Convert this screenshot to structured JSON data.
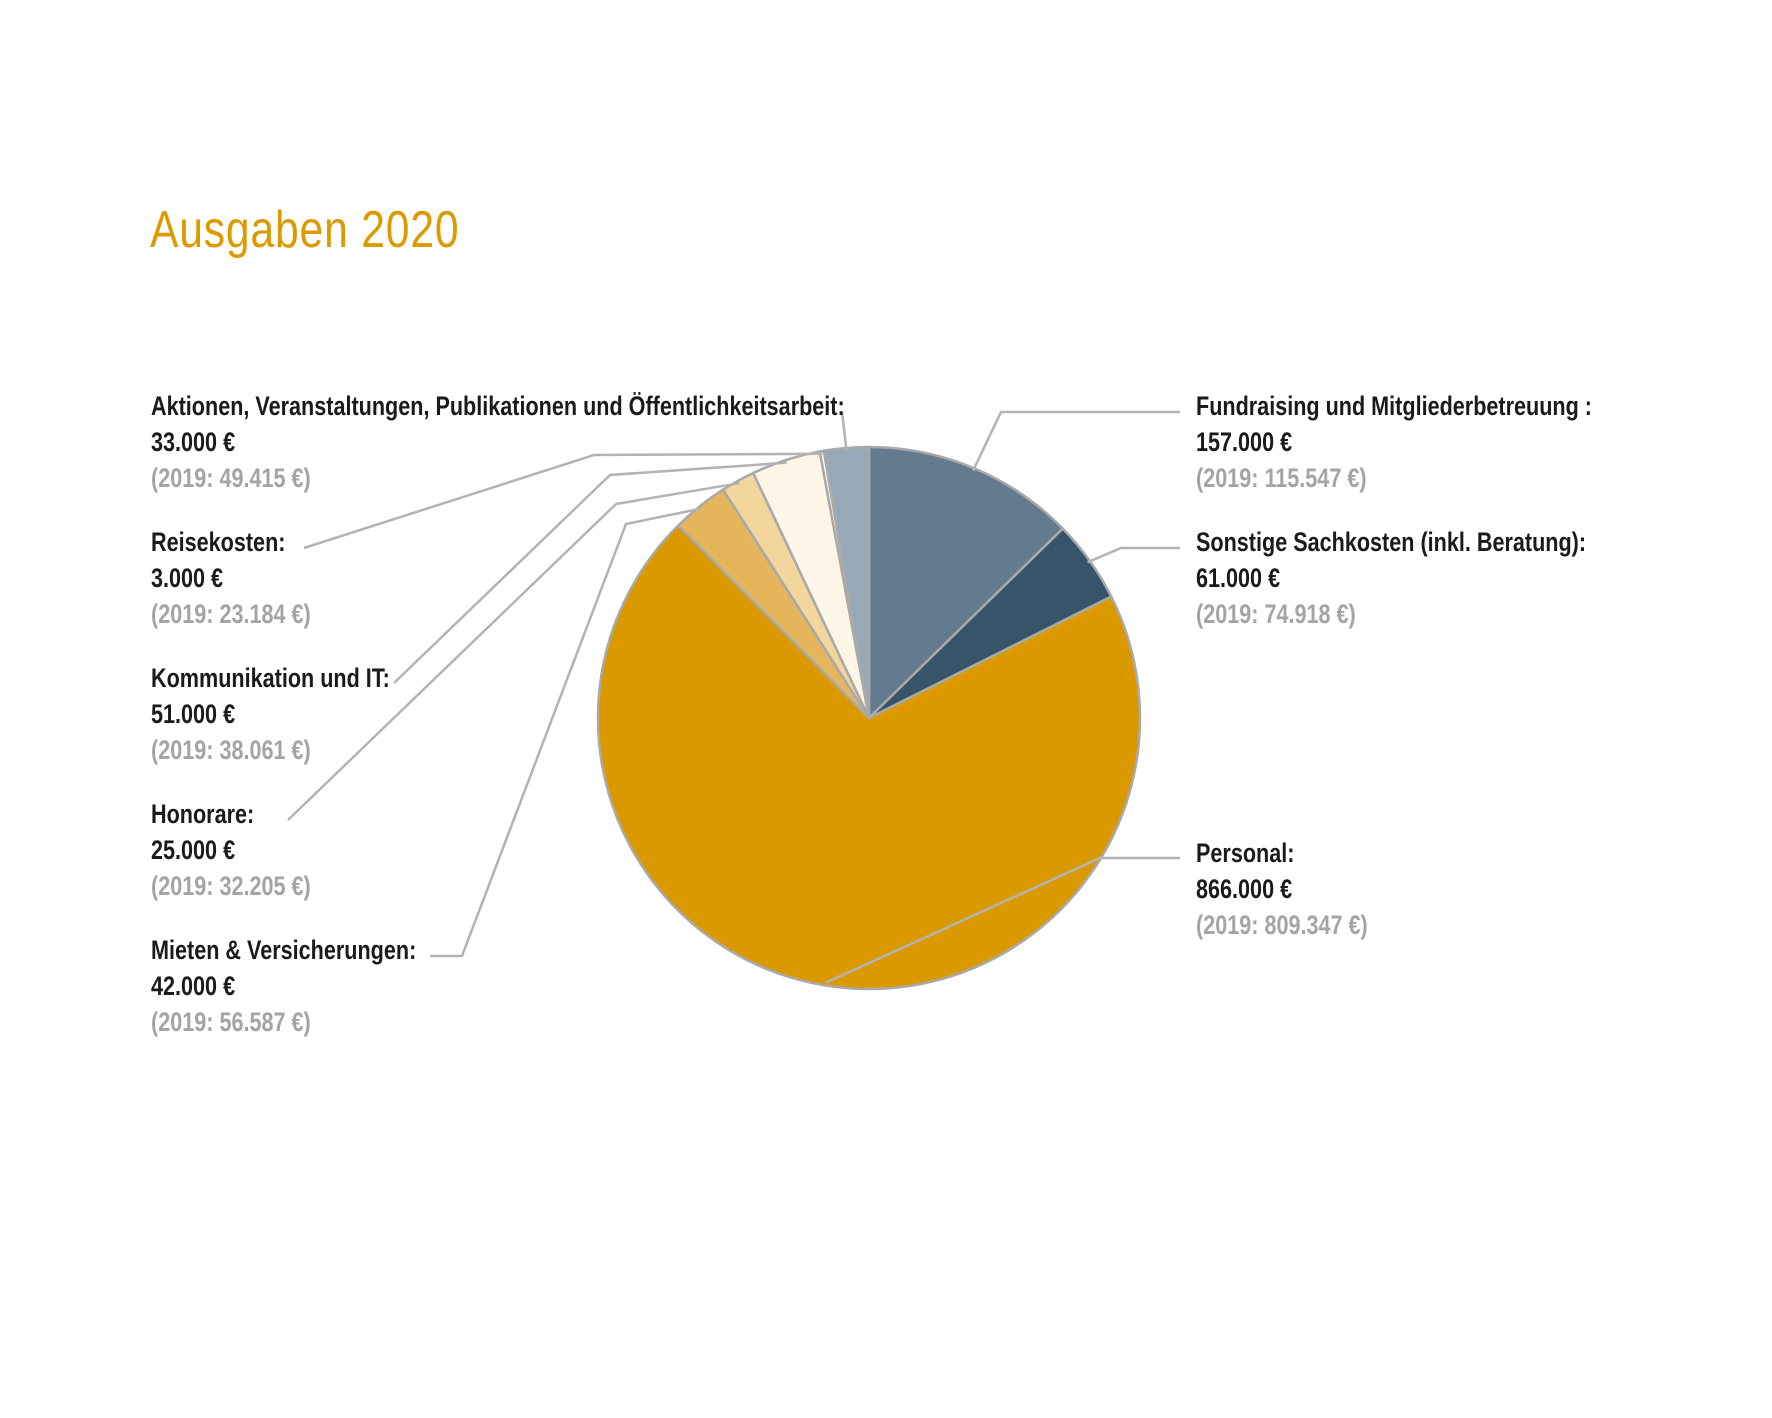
{
  "chart_data": {
    "type": "pie",
    "title": "Ausgaben 2020",
    "colors": {
      "fundraising": "#647a8e",
      "sachkosten": "#37546a",
      "personal": "#db9900",
      "mieten": "#e6b65c",
      "honorare": "#f2d69c",
      "kommunikation": "#fdf6e6",
      "reisekosten": "#fefcf6",
      "aktionen": "#97a9b7",
      "stroke": "#a9a9a9",
      "leader": "#b3b3b3"
    },
    "slices": [
      {
        "key": "fundraising",
        "label": "Fundraising und Mitgliederbetreuung :",
        "value": 157000,
        "value_label": "157.000 €",
        "prev_label": "(2019: 115.547 €)"
      },
      {
        "key": "sachkosten",
        "label": "Sonstige Sachkosten (inkl. Beratung):",
        "value": 61000,
        "value_label": "61.000 €",
        "prev_label": "(2019: 74.918 €)"
      },
      {
        "key": "personal",
        "label": "Personal:",
        "value": 866000,
        "value_label": "866.000 €",
        "prev_label": "(2019: 809.347 €)"
      },
      {
        "key": "mieten",
        "label": "Mieten & Versicherungen:",
        "value": 42000,
        "value_label": "42.000 €",
        "prev_label": "(2019: 56.587 €)"
      },
      {
        "key": "honorare",
        "label": "Honorare:",
        "value": 25000,
        "value_label": "25.000 €",
        "prev_label": "(2019: 32.205 €)"
      },
      {
        "key": "kommunikation",
        "label": "Kommunikation und IT:",
        "value": 51000,
        "value_label": "51.000 €",
        "prev_label": "(2019: 38.061 €)"
      },
      {
        "key": "reisekosten",
        "label": "Reisekosten:",
        "value": 3000,
        "value_label": "3.000 €",
        "prev_label": "(2019: 23.184 €)"
      },
      {
        "key": "aktionen",
        "label": "Aktionen, Veranstaltungen, Publikationen und Öffentlichkeitsarbeit:",
        "value": 33000,
        "value_label": "33.000 €",
        "prev_label": "(2019: 49.415 €)"
      }
    ]
  }
}
